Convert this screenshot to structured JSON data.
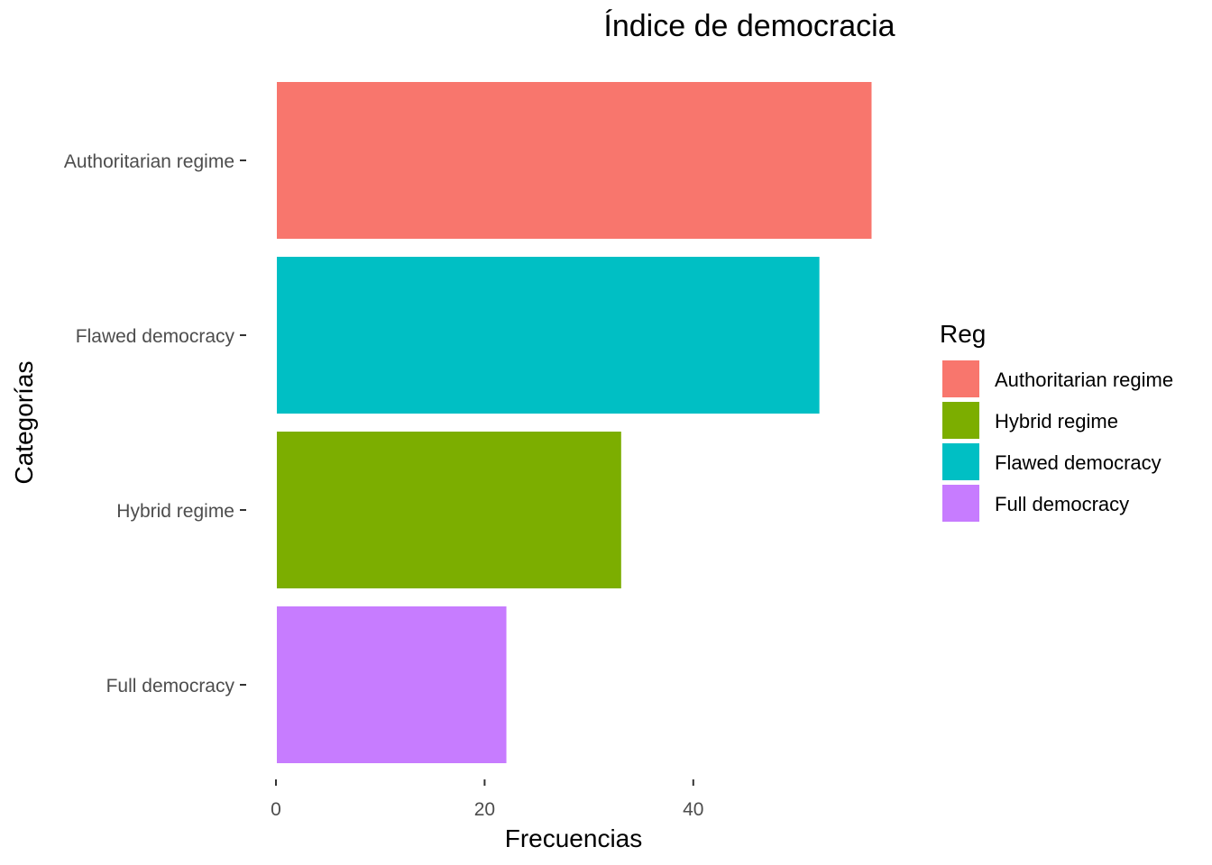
{
  "chart_data": {
    "type": "bar",
    "orientation": "horizontal",
    "title": "Índice de democracia",
    "xlabel": "Frecuencias",
    "ylabel": "Categorías",
    "categories": [
      "Authoritarian regime",
      "Flawed democracy",
      "Hybrid regime",
      "Full democracy"
    ],
    "values": [
      57,
      52,
      33,
      22
    ],
    "colors": [
      "#F8766D",
      "#00BFC4",
      "#7CAE00",
      "#C77CFF"
    ],
    "xticks": [
      0,
      20,
      40
    ],
    "xlim": [
      0,
      57
    ],
    "grid": false,
    "legend": {
      "title": "Reg",
      "placement": "right",
      "items": [
        {
          "label": "Authoritarian regime",
          "color": "#F8766D"
        },
        {
          "label": "Hybrid regime",
          "color": "#7CAE00"
        },
        {
          "label": "Flawed democracy",
          "color": "#00BFC4"
        },
        {
          "label": "Full democracy",
          "color": "#C77CFF"
        }
      ]
    }
  }
}
